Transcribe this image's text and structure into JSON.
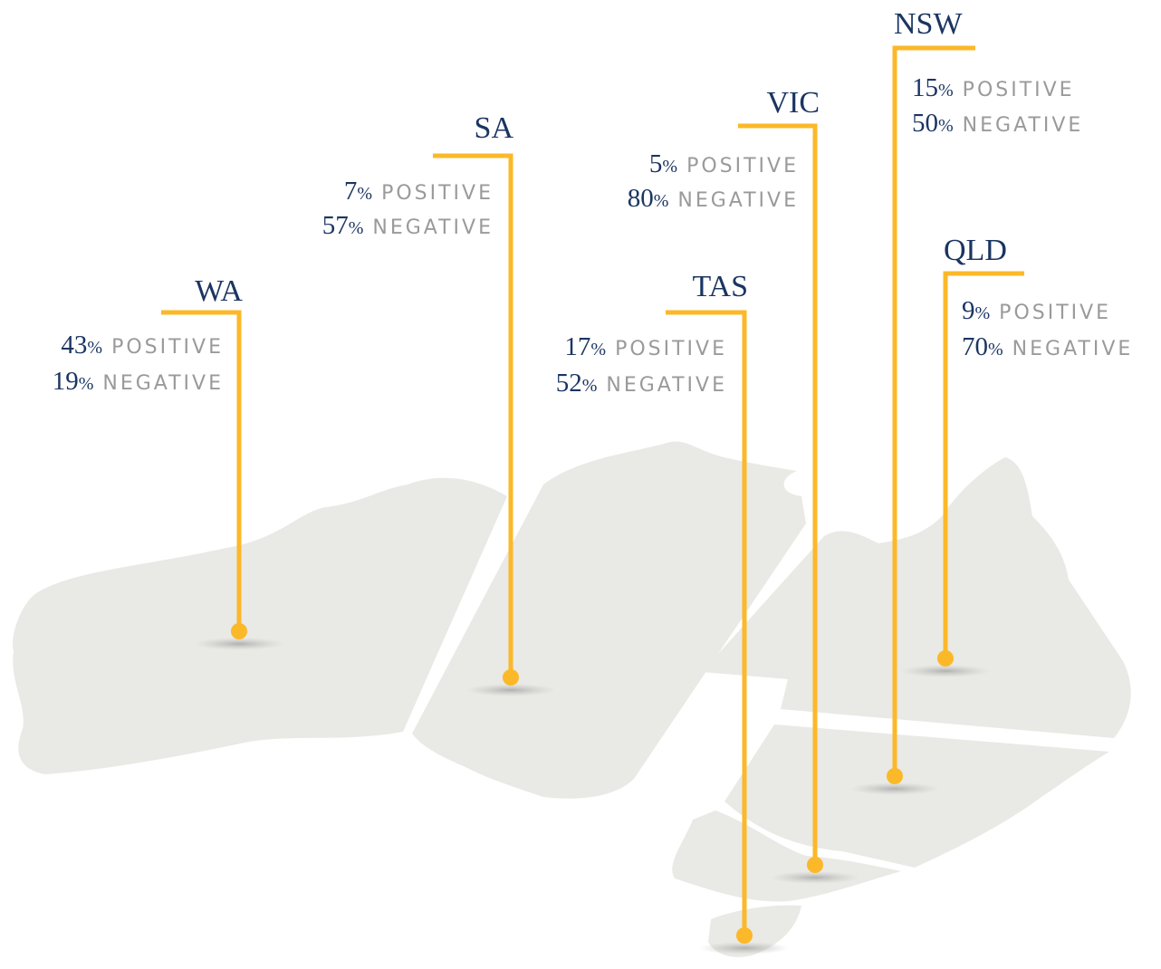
{
  "unit": "%",
  "positive_label": "POSITIVE",
  "negative_label": "NEGATIVE",
  "regions": [
    {
      "name": "WA",
      "positive": 43,
      "negative": 19
    },
    {
      "name": "SA",
      "positive": 7,
      "negative": 57
    },
    {
      "name": "TAS",
      "positive": 17,
      "negative": 52
    },
    {
      "name": "VIC",
      "positive": 5,
      "negative": 80
    },
    {
      "name": "NSW",
      "positive": 15,
      "negative": 50
    },
    {
      "name": "QLD",
      "positive": 9,
      "negative": 70
    }
  ]
}
